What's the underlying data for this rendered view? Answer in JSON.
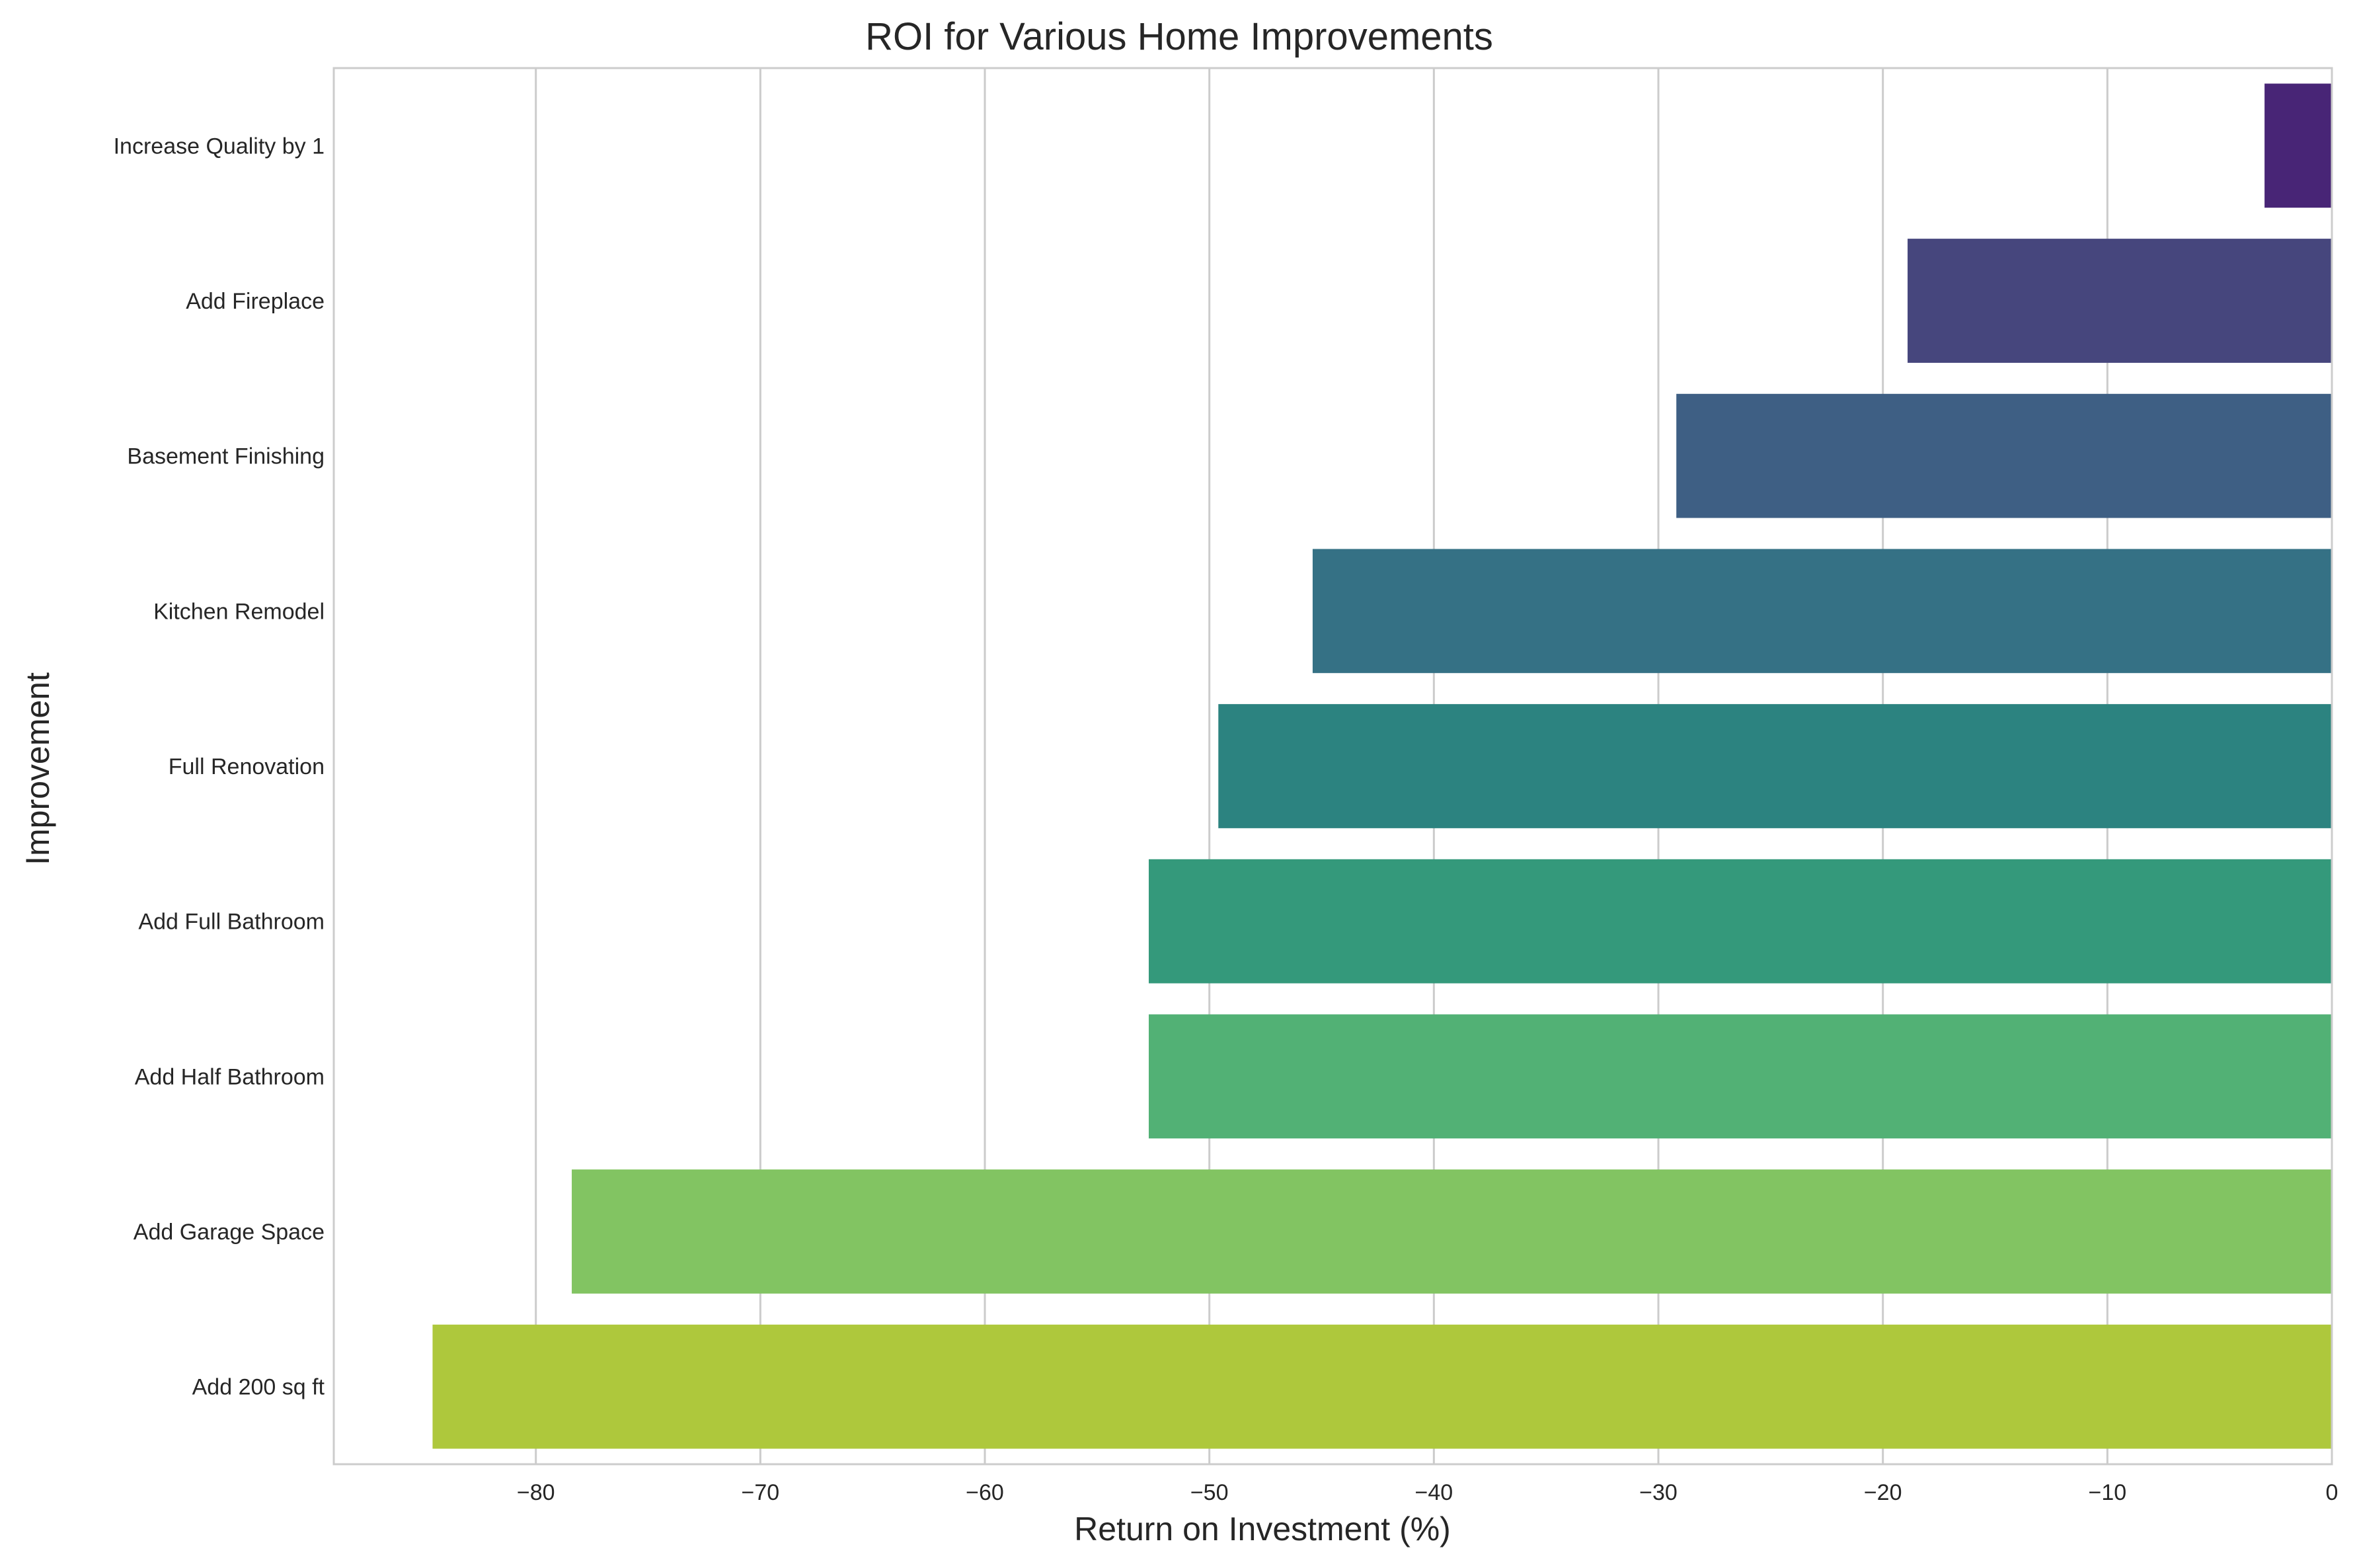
{
  "chart_data": {
    "type": "bar",
    "orientation": "horizontal",
    "title": "ROI for Various Home Improvements",
    "xlabel": "Return on Investment (%)",
    "ylabel": "Improvement",
    "categories": [
      "Increase Quality by 1",
      "Add Fireplace",
      "Basement Finishing",
      "Kitchen Remodel",
      "Full Renovation",
      "Add Full Bathroom",
      "Add Half Bathroom",
      "Add Garage Space",
      "Add 200 sq ft"
    ],
    "values": [
      -3.0,
      -18.9,
      -29.2,
      -45.4,
      -49.6,
      -52.7,
      -52.7,
      -78.4,
      -84.6
    ],
    "colors": [
      "#482576",
      "#46467d",
      "#3e5f84",
      "#357185",
      "#2c8380",
      "#34997b",
      "#52b175",
      "#82c462",
      "#aec83c"
    ],
    "xlim": [
      -89,
      0
    ],
    "xticks": [
      -80,
      -70,
      -60,
      -50,
      -40,
      -30,
      -20,
      -10,
      0
    ],
    "xtick_labels": [
      "−80",
      "−70",
      "−60",
      "−50",
      "−40",
      "−30",
      "−20",
      "−10",
      "0"
    ],
    "grid": "vertical",
    "reference_line": {
      "x": 0,
      "style": "dashed",
      "color": "#e8a0b0"
    }
  }
}
